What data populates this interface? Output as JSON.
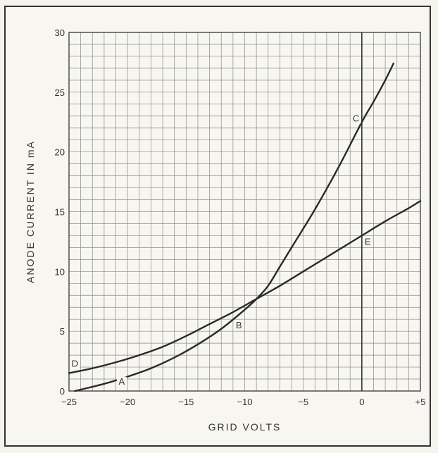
{
  "chart_data": {
    "type": "line",
    "title": "",
    "xlabel": "GRID VOLTS",
    "ylabel": "ANODE CURRENT IN mA",
    "xlim": [
      -25,
      5
    ],
    "ylim": [
      0,
      30
    ],
    "grid": true,
    "x_ticks": [
      {
        "value": -25,
        "label": "−25"
      },
      {
        "value": -20,
        "label": "−20"
      },
      {
        "value": -15,
        "label": "−15"
      },
      {
        "value": -10,
        "label": "−10"
      },
      {
        "value": -5,
        "label": "−5"
      },
      {
        "value": 0,
        "label": "0"
      },
      {
        "value": 5,
        "label": "+5"
      }
    ],
    "y_ticks": [
      {
        "value": 0,
        "label": "0"
      },
      {
        "value": 5,
        "label": "5"
      },
      {
        "value": 10,
        "label": "10"
      },
      {
        "value": 15,
        "label": "15"
      },
      {
        "value": 20,
        "label": "20"
      },
      {
        "value": 25,
        "label": "25"
      },
      {
        "value": 30,
        "label": "30"
      }
    ],
    "series": [
      {
        "points": [
          [
            -24.5,
            0.0
          ],
          [
            -22,
            0.6
          ],
          [
            -20,
            1.2
          ],
          [
            -18,
            1.9
          ],
          [
            -16,
            2.8
          ],
          [
            -14,
            3.9
          ],
          [
            -12,
            5.2
          ],
          [
            -10,
            6.8
          ],
          [
            -9,
            7.7
          ],
          [
            -8,
            8.8
          ],
          [
            -7,
            10.4
          ],
          [
            -6,
            12.0
          ],
          [
            -4,
            15.2
          ],
          [
            -2,
            18.7
          ],
          [
            0,
            22.5
          ],
          [
            1,
            24.2
          ],
          [
            2,
            26.0
          ],
          [
            2.7,
            27.4
          ]
        ]
      },
      {
        "points": [
          [
            -25,
            1.5
          ],
          [
            -23,
            1.9
          ],
          [
            -21,
            2.4
          ],
          [
            -19,
            3.0
          ],
          [
            -17,
            3.7
          ],
          [
            -15,
            4.6
          ],
          [
            -13,
            5.6
          ],
          [
            -11,
            6.6
          ],
          [
            -9,
            7.7
          ],
          [
            -7,
            8.8
          ],
          [
            -5,
            10.0
          ],
          [
            -3,
            11.2
          ],
          [
            -1,
            12.4
          ],
          [
            0,
            13.0
          ],
          [
            2,
            14.2
          ],
          [
            4,
            15.3
          ],
          [
            5,
            15.9
          ]
        ]
      }
    ],
    "annotations": [
      {
        "label": "A",
        "x": -20.5,
        "y": 0.6
      },
      {
        "label": "B",
        "x": -10.5,
        "y": 5.3
      },
      {
        "label": "C",
        "x": -0.5,
        "y": 22.6
      },
      {
        "label": "D",
        "x": -24.5,
        "y": 2.1
      },
      {
        "label": "E",
        "x": 0.5,
        "y": 12.3
      }
    ]
  }
}
